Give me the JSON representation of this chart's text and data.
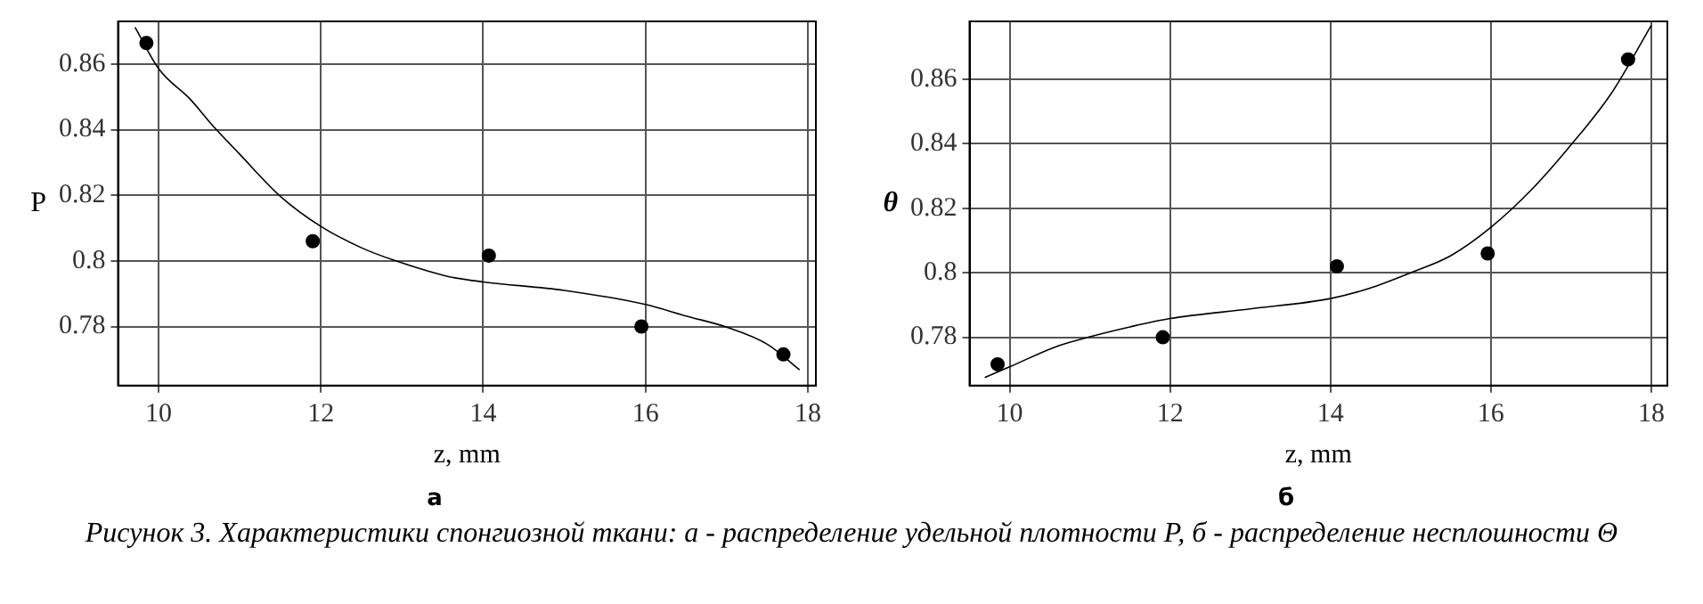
{
  "chart_data": [
    {
      "type": "scatter",
      "title": "а",
      "xlabel": "z, mm",
      "ylabel": "P",
      "xlim": [
        9.5,
        18.1
      ],
      "xticks": [
        10,
        12,
        14,
        16,
        18
      ],
      "ylim": [
        0.762,
        0.873
      ],
      "yticks": [
        0.78,
        0.8,
        0.82,
        0.84,
        0.86
      ],
      "grid": true,
      "series": [
        {
          "type": "scatter",
          "marker": "circle",
          "color": "#000000",
          "x": [
            9.85,
            11.9,
            14.07,
            15.95,
            17.7
          ],
          "values": [
            0.8664,
            0.806,
            0.8016,
            0.78,
            0.7715
          ]
        },
        {
          "type": "line",
          "color": "#000000",
          "x": [
            9.71,
            10,
            10.4,
            10.64,
            11,
            11.5,
            12,
            12.5,
            12.9,
            13.56,
            14,
            15,
            16,
            16.5,
            17,
            17.5,
            17.9
          ],
          "values": [
            0.8712,
            0.8586,
            0.849,
            0.842,
            0.8325,
            0.8197,
            0.8105,
            0.804,
            0.8002,
            0.7953,
            0.7936,
            0.791,
            0.7867,
            0.7832,
            0.7798,
            0.7746,
            0.7668
          ]
        }
      ]
    },
    {
      "type": "scatter",
      "title": "б",
      "xlabel": "z, mm",
      "ylabel": "θ",
      "xlim": [
        9.5,
        18.2
      ],
      "xticks": [
        10,
        12,
        14,
        16,
        18
      ],
      "ylim": [
        0.765,
        0.878
      ],
      "yticks": [
        0.78,
        0.8,
        0.82,
        0.84,
        0.86
      ],
      "grid": true,
      "annotations": [
        "Рисунок 3. Характеристики спонгиозной ткани: а - распределение удельной плотности P, б - распределение несплошности Θ"
      ],
      "series": [
        {
          "type": "scatter",
          "marker": "circle",
          "color": "#000000",
          "x": [
            9.85,
            11.91,
            14.08,
            15.96,
            17.71
          ],
          "values": [
            0.7716,
            0.78,
            0.802,
            0.806,
            0.8662
          ]
        },
        {
          "type": "line",
          "color": "#000000",
          "x": [
            9.69,
            10,
            10.57,
            10.98,
            11.5,
            12,
            13,
            14,
            14.49,
            15,
            15.5,
            16,
            16.5,
            17,
            17.5,
            18
          ],
          "values": [
            0.7675,
            0.7708,
            0.777,
            0.78,
            0.7832,
            0.7858,
            0.7888,
            0.792,
            0.7952,
            0.8,
            0.8053,
            0.8141,
            0.8256,
            0.8397,
            0.8556,
            0.8768
          ]
        }
      ]
    }
  ]
}
